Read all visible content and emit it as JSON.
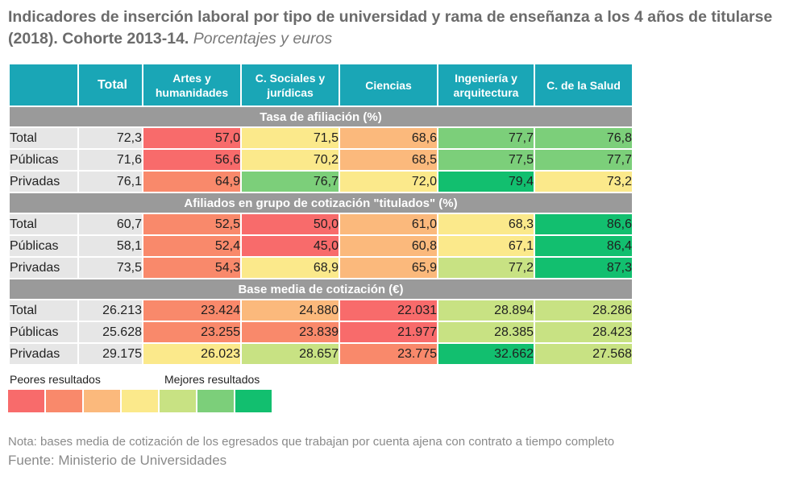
{
  "title": {
    "bold": "Indicadores de inserción laboral por tipo de universidad y rama de enseñanza a los 4 años de titularse (2018). Cohorte 2013-14.",
    "subtitle": "Porcentajes y euros"
  },
  "colors": {
    "header_bg": "#1aa6b6",
    "section_bg": "#9a9a9a",
    "label_bg": "#e6e6e6",
    "scale": [
      "#f86b6b",
      "#f9896b",
      "#fbb97c",
      "#fbe98b",
      "#c8e283",
      "#7ccf7a",
      "#12bf6f"
    ]
  },
  "legend": {
    "worse_label": "Peores resultados",
    "better_label": "Mejores resultados"
  },
  "note": "Nota: bases media de cotización de los egresados que trabajan por cuenta ajena con contrato a tiempo completo",
  "source": "Fuente: Ministerio de Universidades",
  "chart_data": {
    "type": "table",
    "columns": [
      "Total",
      "Artes y humanidades",
      "C. Sociales y jurídicas",
      "Ciencias",
      "Ingeniería y arquitectura",
      "C. de la Salud"
    ],
    "sections": [
      {
        "title": "Tasa de afiliación (%)",
        "rows": [
          {
            "label": "Total",
            "values": [
              "72,3",
              "57,0",
              "71,5",
              "68,6",
              "77,7",
              "76,8"
            ],
            "levels": [
              null,
              0,
              3,
              2,
              5,
              5
            ]
          },
          {
            "label": "Públicas",
            "values": [
              "71,6",
              "56,6",
              "70,2",
              "68,5",
              "77,5",
              "77,7"
            ],
            "levels": [
              null,
              0,
              3,
              2,
              5,
              5
            ]
          },
          {
            "label": "Privadas",
            "values": [
              "76,1",
              "64,9",
              "76,7",
              "72,0",
              "79,4",
              "73,2"
            ],
            "levels": [
              null,
              1,
              5,
              3,
              6,
              3
            ]
          }
        ]
      },
      {
        "title": "Afiliados en grupo de cotización \"titulados\" (%)",
        "rows": [
          {
            "label": "Total",
            "values": [
              "60,7",
              "52,5",
              "50,0",
              "61,0",
              "68,3",
              "86,6"
            ],
            "levels": [
              null,
              1,
              0,
              2,
              3,
              6
            ]
          },
          {
            "label": "Públicas",
            "values": [
              "58,1",
              "52,4",
              "45,0",
              "60,8",
              "67,1",
              "86,4"
            ],
            "levels": [
              null,
              1,
              0,
              2,
              3,
              6
            ]
          },
          {
            "label": "Privadas",
            "values": [
              "73,5",
              "54,3",
              "68,9",
              "65,9",
              "77,2",
              "87,3"
            ],
            "levels": [
              null,
              1,
              3,
              2,
              4,
              6
            ]
          }
        ]
      },
      {
        "title": "Base media de cotización (€)",
        "rows": [
          {
            "label": "Total",
            "values": [
              "26.213",
              "23.424",
              "24.880",
              "22.031",
              "28.894",
              "28.286"
            ],
            "levels": [
              null,
              1,
              2,
              0,
              4,
              4
            ]
          },
          {
            "label": "Públicas",
            "values": [
              "25.628",
              "23.255",
              "23.839",
              "21.977",
              "28.385",
              "28.423"
            ],
            "levels": [
              null,
              1,
              1,
              0,
              4,
              4
            ]
          },
          {
            "label": "Privadas",
            "values": [
              "29.175",
              "26.023",
              "28.657",
              "23.775",
              "32.662",
              "27.568"
            ],
            "levels": [
              null,
              3,
              4,
              1,
              6,
              4
            ]
          }
        ]
      }
    ]
  }
}
